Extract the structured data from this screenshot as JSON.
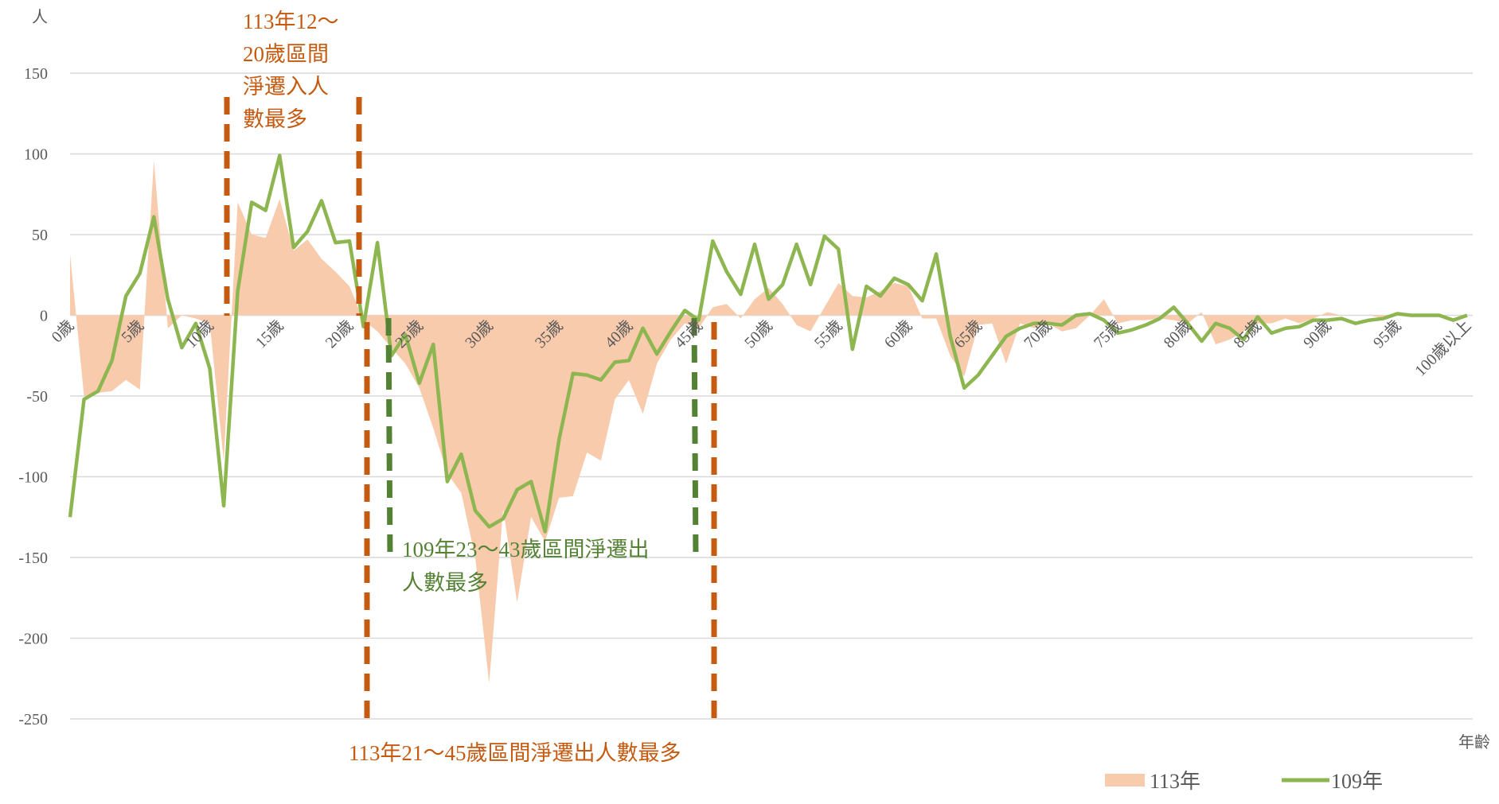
{
  "chart_data": {
    "type": "line",
    "y_label": "人",
    "x_label": "年齡",
    "categories": [
      "0歲",
      null,
      null,
      null,
      null,
      "5歲",
      null,
      null,
      null,
      null,
      "10歲",
      null,
      null,
      null,
      null,
      "15歲",
      null,
      null,
      null,
      null,
      "20歲",
      null,
      null,
      null,
      null,
      "25歲",
      null,
      null,
      null,
      null,
      "30歲",
      null,
      null,
      null,
      null,
      "35歲",
      null,
      null,
      null,
      null,
      "40歲",
      null,
      null,
      null,
      null,
      "45歲",
      null,
      null,
      null,
      null,
      "50歲",
      null,
      null,
      null,
      null,
      "55歲",
      null,
      null,
      null,
      null,
      "60歲",
      null,
      null,
      null,
      null,
      "65歲",
      null,
      null,
      null,
      null,
      "70歲",
      null,
      null,
      null,
      null,
      "75歲",
      null,
      null,
      null,
      null,
      "80歲",
      null,
      null,
      null,
      null,
      "85歲",
      null,
      null,
      null,
      null,
      "90歲",
      null,
      null,
      null,
      null,
      "95歲",
      null,
      null,
      null,
      null,
      "100歲以上"
    ],
    "series": [
      {
        "name": "113年",
        "type": "area",
        "color": "#f8cbad",
        "values": [
          38,
          -50,
          -48,
          -47,
          -40,
          -46,
          96,
          -8,
          0,
          -2,
          -5,
          -90,
          70,
          50,
          48,
          72,
          40,
          47,
          35,
          27,
          18,
          -3,
          -10,
          -20,
          -30,
          -45,
          -70,
          -98,
          -110,
          -150,
          -228,
          -120,
          -178,
          -125,
          -140,
          -113,
          -112,
          -85,
          -90,
          -52,
          -40,
          -61,
          -30,
          -15,
          -5,
          -8,
          5,
          7,
          -2,
          10,
          17,
          7,
          -6,
          -10,
          5,
          20,
          12,
          11,
          15,
          20,
          18,
          -2,
          -2,
          -25,
          -38,
          -6,
          -5,
          -30,
          -5,
          -8,
          -5,
          -10,
          -8,
          0,
          10,
          -5,
          -3,
          -3,
          -2,
          -3,
          -5,
          2,
          -18,
          -15,
          -10,
          -5,
          -5,
          -2,
          -5,
          -2,
          2,
          0,
          0,
          0,
          -2,
          2,
          0,
          -1,
          0,
          0,
          0
        ]
      },
      {
        "name": "109年",
        "type": "line",
        "color": "#8db650",
        "values": [
          -125,
          -52,
          -47,
          -28,
          12,
          26,
          61,
          10,
          -20,
          -5,
          -33,
          -118,
          15,
          70,
          65,
          99,
          42,
          52,
          71,
          45,
          46,
          -7,
          45,
          -25,
          -12,
          -42,
          -18,
          -103,
          -86,
          -121,
          -131,
          -126,
          -108,
          -103,
          -134,
          -77,
          -36,
          -37,
          -40,
          -29,
          -28,
          -8,
          -24,
          -10,
          3,
          -3,
          46,
          27,
          13,
          44,
          10,
          19,
          44,
          19,
          49,
          41,
          -21,
          18,
          12,
          23,
          19,
          9,
          38,
          -13,
          -45,
          -37,
          -25,
          -13,
          -8,
          -5,
          -5,
          -6,
          0,
          1,
          -3,
          -11,
          -9,
          -6,
          -2,
          5,
          -5,
          -16,
          -5,
          -8,
          -15,
          -1,
          -11,
          -8,
          -7,
          -3,
          -3,
          -2,
          -5,
          -3,
          -2,
          1,
          0,
          0,
          0,
          -3,
          0
        ]
      }
    ],
    "ylim": [
      -250,
      150
    ],
    "yticks": [
      -250,
      -200,
      -150,
      -100,
      -50,
      0,
      50,
      100,
      150
    ],
    "grid": true,
    "legend": "bottom-right",
    "annotations": [
      {
        "color": "#c55a11",
        "lines": [
          "113年12～",
          "20歲區間",
          "淨遷入人",
          "數最多"
        ]
      },
      {
        "color": "#548235",
        "lines": [
          "109年23～43歲區間淨遷出",
          "人數最多"
        ]
      },
      {
        "color": "#c55a11",
        "lines": [
          "113年21～45歲區間淨遷出人數最多"
        ]
      }
    ]
  }
}
